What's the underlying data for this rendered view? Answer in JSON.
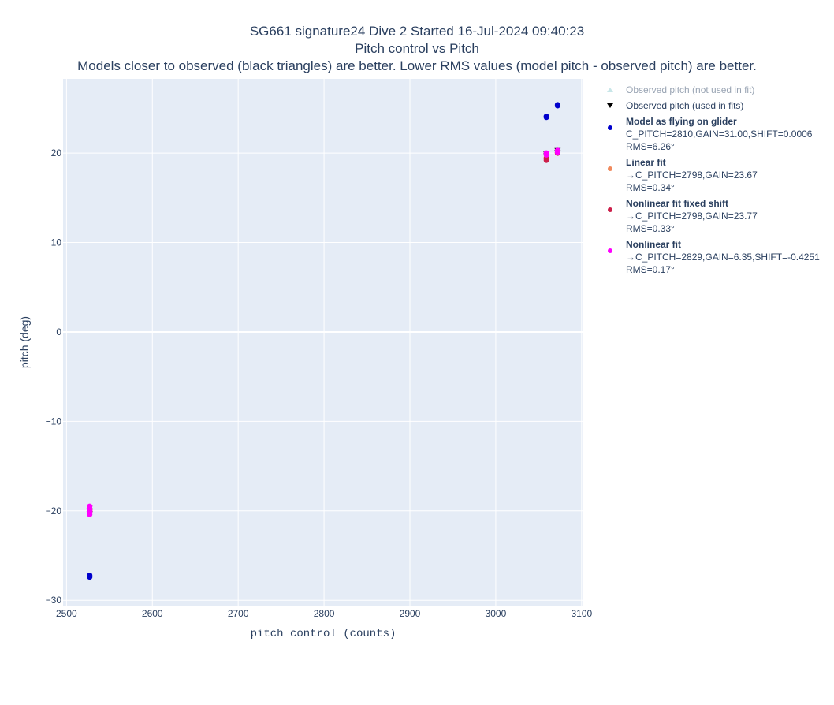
{
  "chart_data": {
    "type": "scatter",
    "title_lines": [
      "SG661 signature24 Dive 2 Started 16-Jul-2024 09:40:23",
      "Pitch control vs Pitch",
      "Models closer to observed (black triangles) are better. Lower RMS values (model pitch - observed pitch) are better."
    ],
    "xlabel": "pitch control (counts)",
    "ylabel": "pitch (deg)",
    "xlim": [
      2496,
      3102
    ],
    "ylim": [
      -30.6,
      28.3
    ],
    "xticks": [
      2500,
      2600,
      2700,
      2800,
      2900,
      3000,
      3100
    ],
    "xtick_labels": [
      "2500",
      "2600",
      "2700",
      "2800",
      "2900",
      "3000",
      "3100"
    ],
    "yticks": [
      -30,
      -20,
      -10,
      0,
      10,
      20
    ],
    "ytick_labels": [
      "−30",
      "−20",
      "−10",
      "0",
      "10",
      "20"
    ],
    "grid": true,
    "legend_position": "right",
    "series": [
      {
        "name": "Observed pitch (not used in fit)",
        "color": "#c8e6e8",
        "marker": "triangle-up",
        "x": [],
        "y": []
      },
      {
        "name": "Observed pitch (used in fits)",
        "color": "#000000",
        "marker": "triangle-down",
        "x": [
          2527,
          2527,
          2527,
          3059,
          3059,
          3072,
          3072
        ],
        "y": [
          -19.6,
          -20.0,
          -20.3,
          19.7,
          19.9,
          20.1,
          20.3
        ]
      },
      {
        "name": "Model as flying on glider",
        "detail": [
          "C_PITCH=2810,GAIN=31.00,SHIFT=0.0006",
          "RMS=6.26°"
        ],
        "color": "#0000cc",
        "marker": "circle",
        "x": [
          2527,
          2527,
          3059,
          3059,
          3072,
          3072
        ],
        "y": [
          -27.2,
          -27.4,
          24.0,
          24.1,
          25.3,
          25.4
        ]
      },
      {
        "name": "Linear fit",
        "detail": [
          "→C_PITCH=2798,GAIN=23.67",
          "RMS=0.34°"
        ],
        "color": "#f08a5d",
        "marker": "circle",
        "x": [
          2527,
          2527,
          3059,
          3072
        ],
        "y": [
          -19.8,
          -20.0,
          19.5,
          20.1
        ]
      },
      {
        "name": "Nonlinear fit fixed shift",
        "detail": [
          "→C_PITCH=2798,GAIN=23.77",
          "RMS=0.33°"
        ],
        "color": "#cc1f4a",
        "marker": "circle",
        "x": [
          2527,
          2527,
          3059,
          3059,
          3072
        ],
        "y": [
          -19.9,
          -20.1,
          19.2,
          19.4,
          20.0
        ]
      },
      {
        "name": "Nonlinear fit",
        "detail": [
          "→C_PITCH=2829,GAIN=6.35,SHIFT=-0.4251",
          "RMS=0.17°"
        ],
        "color": "#ff00ff",
        "marker": "circle",
        "x": [
          2527,
          2527,
          2527,
          2527,
          2527,
          3059,
          3059,
          3072,
          3072
        ],
        "y": [
          -19.5,
          -19.8,
          -20.0,
          -20.2,
          -20.4,
          19.8,
          20.0,
          20.1,
          20.3
        ]
      }
    ]
  }
}
